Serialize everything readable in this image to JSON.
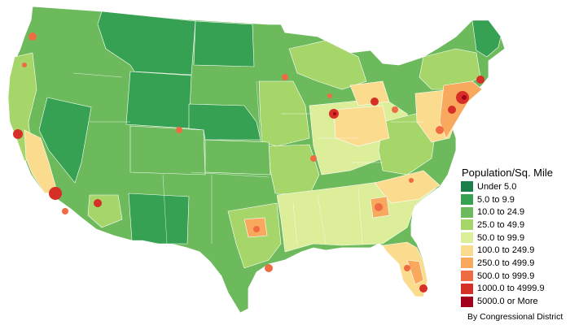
{
  "legend": {
    "title": "Population/Sq. Mile",
    "items": [
      {
        "label": "Under 5.0",
        "color": "#1a7f4b"
      },
      {
        "label": "5.0 to 9.9",
        "color": "#36a152"
      },
      {
        "label": "10.0 to 24.9",
        "color": "#6cba5c"
      },
      {
        "label": "25.0 to 49.9",
        "color": "#a6d66a"
      },
      {
        "label": "50.0 to 99.9",
        "color": "#dcee9a"
      },
      {
        "label": "100.0 to 249.9",
        "color": "#fbdc8e"
      },
      {
        "label": "250.0 to 499.9",
        "color": "#f8a95e"
      },
      {
        "label": "500.0 to 999.9",
        "color": "#ef6b44"
      },
      {
        "label": "1000.0 to 4999.9",
        "color": "#d62f27"
      },
      {
        "label": "5000.0 or More",
        "color": "#a3001c"
      }
    ]
  },
  "footnote": "By Congressional District"
}
